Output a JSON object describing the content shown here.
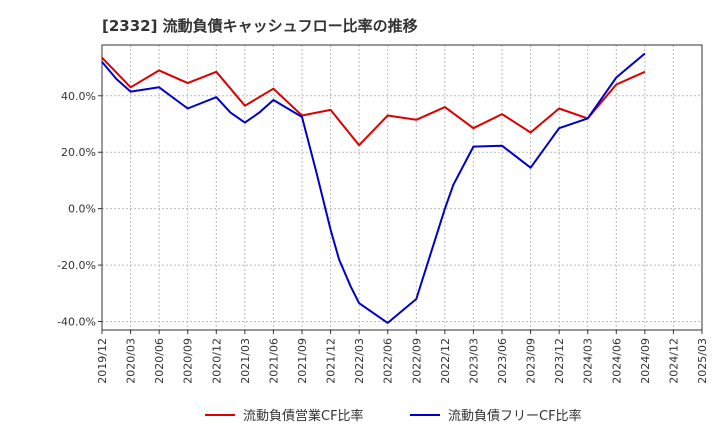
{
  "chart_data": {
    "type": "line",
    "title": "[2332]  流動負債キャッシュフロー比率の推移",
    "xlabel": "",
    "ylabel": "",
    "ylim": [
      -43,
      58
    ],
    "yticks": [
      -40,
      -20,
      0,
      20,
      40
    ],
    "ytick_labels": [
      "-40.0%",
      "-20.0%",
      "0.0%",
      "20.0%",
      "40.0%"
    ],
    "x_categories": [
      "2019/12",
      "2020/03",
      "2020/06",
      "2020/09",
      "2020/12",
      "2021/03",
      "2021/06",
      "2021/09",
      "2021/12",
      "2022/03",
      "2022/06",
      "2022/09",
      "2022/12",
      "2023/03",
      "2023/06",
      "2023/09",
      "2023/12",
      "2024/03",
      "2024/06",
      "2024/09",
      "2024/12",
      "2025/03"
    ],
    "grid": true,
    "legend_position": "bottom",
    "colors": {
      "operating": "#dd0000",
      "free": "#0000cc",
      "grid": "#bbbbbb",
      "axis": "#333333"
    },
    "series": [
      {
        "name": "流動負債営業CF比率",
        "color": "#dd0000",
        "x": [
          0,
          1,
          2,
          3,
          4,
          5,
          6,
          7,
          8,
          9,
          10,
          11,
          12,
          13,
          14,
          15,
          16,
          17,
          18,
          19
        ],
        "values": [
          53.5,
          43.0,
          49.0,
          44.5,
          48.5,
          36.5,
          42.5,
          33.0,
          35.0,
          22.5,
          33.0,
          31.5,
          36.0,
          28.5,
          33.5,
          27.0,
          35.5,
          32.0,
          44.0,
          48.5
        ]
      },
      {
        "name": "流動負債フリーCF比率",
        "color": "#0000cc",
        "x": [
          0,
          0.5,
          1,
          2,
          3,
          4,
          4.5,
          5,
          5.5,
          6,
          6.5,
          7,
          7.5,
          8,
          8.3,
          8.7,
          9,
          10,
          11,
          12,
          12.3,
          13,
          14,
          15,
          16,
          17,
          18,
          19
        ],
        "values": [
          52.0,
          46.0,
          41.5,
          43.0,
          35.5,
          39.5,
          34.0,
          30.5,
          34.0,
          38.5,
          35.5,
          32.5,
          13.0,
          -7.5,
          -18.0,
          -27.5,
          -33.5,
          -40.5,
          -32.0,
          0.0,
          8.5,
          22.0,
          22.3,
          14.5,
          28.5,
          32.0,
          46.5,
          55.0
        ]
      }
    ]
  }
}
